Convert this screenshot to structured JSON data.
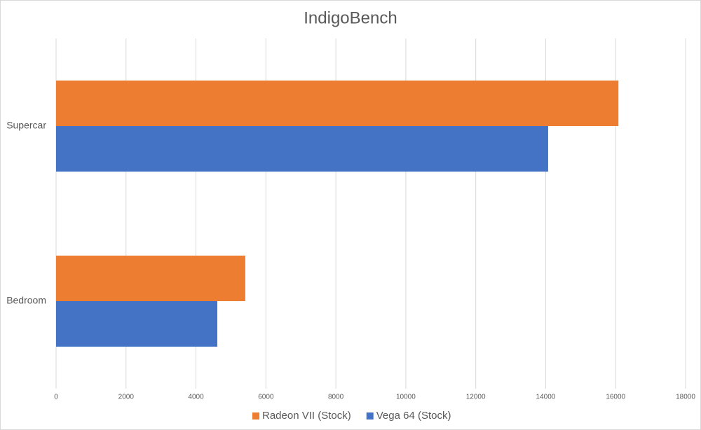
{
  "chart_data": {
    "type": "barh",
    "title": "IndigoBench",
    "categories": [
      "Supercar",
      "Bedroom"
    ],
    "series": [
      {
        "name": "Radeon VII (Stock)",
        "color": "#ed7d31",
        "values": [
          16080,
          5410
        ]
      },
      {
        "name": "Vega 64 (Stock)",
        "color": "#4472c4",
        "values": [
          14070,
          4610
        ]
      }
    ],
    "xlim": [
      0,
      18000
    ],
    "xticks": [
      0,
      2000,
      4000,
      6000,
      8000,
      10000,
      12000,
      14000,
      16000,
      18000
    ],
    "grid": true,
    "legend": "bottom"
  }
}
